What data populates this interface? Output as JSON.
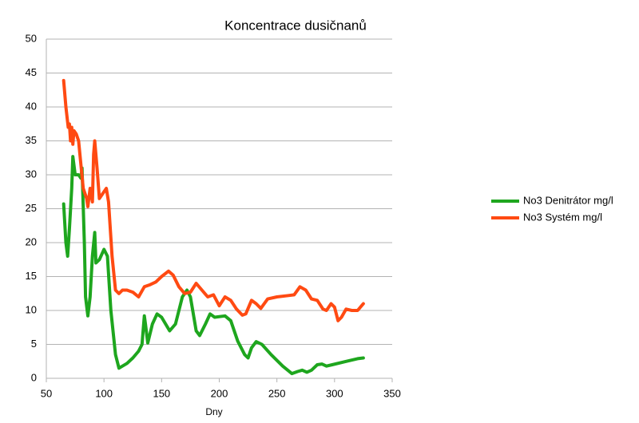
{
  "chart_data": {
    "type": "line",
    "title": "Koncentrace dusičnanů",
    "x_label": "Dny",
    "xlim": [
      50,
      350
    ],
    "xticks": [
      50,
      100,
      150,
      200,
      250,
      300,
      350
    ],
    "ylim": [
      0,
      50
    ],
    "yticks": [
      0,
      5,
      10,
      15,
      20,
      25,
      30,
      35,
      40,
      45,
      50
    ],
    "grid": true,
    "legend": "right",
    "series": [
      {
        "name": "No3 Denitrátor mg/l",
        "color": "#1ea61e",
        "x": [
          65,
          67,
          68.5,
          70,
          72,
          73,
          75,
          78,
          80,
          81,
          83,
          84,
          86,
          88,
          90,
          92,
          93,
          96,
          100,
          103,
          106,
          110,
          113,
          116,
          120,
          125,
          130,
          133,
          135,
          136,
          138,
          142,
          146,
          150,
          157,
          162,
          168,
          172,
          175,
          180,
          183,
          188,
          192,
          196,
          205,
          210,
          216,
          222,
          225,
          228,
          232,
          237,
          245,
          255,
          263,
          268,
          272,
          276,
          280,
          285,
          289,
          293,
          298,
          310,
          320,
          325
        ],
        "values": [
          25.7,
          20,
          18,
          22,
          28,
          32.7,
          30,
          30,
          29.5,
          31,
          20,
          12,
          9.2,
          12,
          18,
          21.5,
          17,
          17.5,
          19,
          18,
          10,
          3.5,
          1.5,
          1.8,
          2.2,
          3,
          4,
          5,
          9.2,
          8,
          5.2,
          8,
          9.5,
          9,
          7,
          8,
          12,
          13,
          12,
          7,
          6.3,
          8,
          9.5,
          9,
          9.2,
          8.5,
          5.5,
          3.5,
          3,
          4.5,
          5.4,
          5,
          3.5,
          1.8,
          0.7,
          1,
          1.2,
          0.9,
          1.2,
          2,
          2.1,
          1.8,
          2,
          2.5,
          2.9,
          3
        ]
      },
      {
        "name": "No3 Systém mg/l",
        "color": "#ff4a12",
        "x": [
          65,
          67,
          69,
          70,
          71,
          72,
          73,
          74,
          76,
          78,
          80,
          82,
          85,
          86,
          88,
          90,
          91,
          92,
          94,
          96,
          100,
          102,
          104,
          107,
          110,
          113,
          116,
          120,
          125,
          130,
          135,
          140,
          145,
          150,
          156,
          160,
          165,
          170,
          175,
          180,
          185,
          190,
          195,
          200,
          205,
          210,
          215,
          220,
          223,
          228,
          232,
          236,
          242,
          250,
          260,
          265,
          270,
          275,
          280,
          285,
          290,
          293,
          297,
          300,
          303,
          306,
          310,
          315,
          320,
          325
        ],
        "values": [
          43.9,
          40,
          37,
          37.5,
          35,
          37,
          34.5,
          36.5,
          36,
          35,
          31.5,
          28,
          26.5,
          25.3,
          28,
          26,
          33,
          35,
          31,
          26.5,
          27.5,
          28,
          26,
          18,
          13,
          12.5,
          13,
          13,
          12.7,
          12,
          13.5,
          13.8,
          14.2,
          15,
          15.8,
          15.2,
          13.5,
          12.5,
          12.7,
          14,
          13,
          12,
          12.3,
          10.7,
          12,
          11.5,
          10.2,
          9.3,
          9.5,
          11.5,
          11,
          10.3,
          11.7,
          12,
          12.2,
          12.3,
          13.5,
          13,
          11.7,
          11.5,
          10.2,
          10,
          11,
          10.5,
          8.5,
          9,
          10.2,
          10,
          10,
          11
        ]
      }
    ]
  }
}
